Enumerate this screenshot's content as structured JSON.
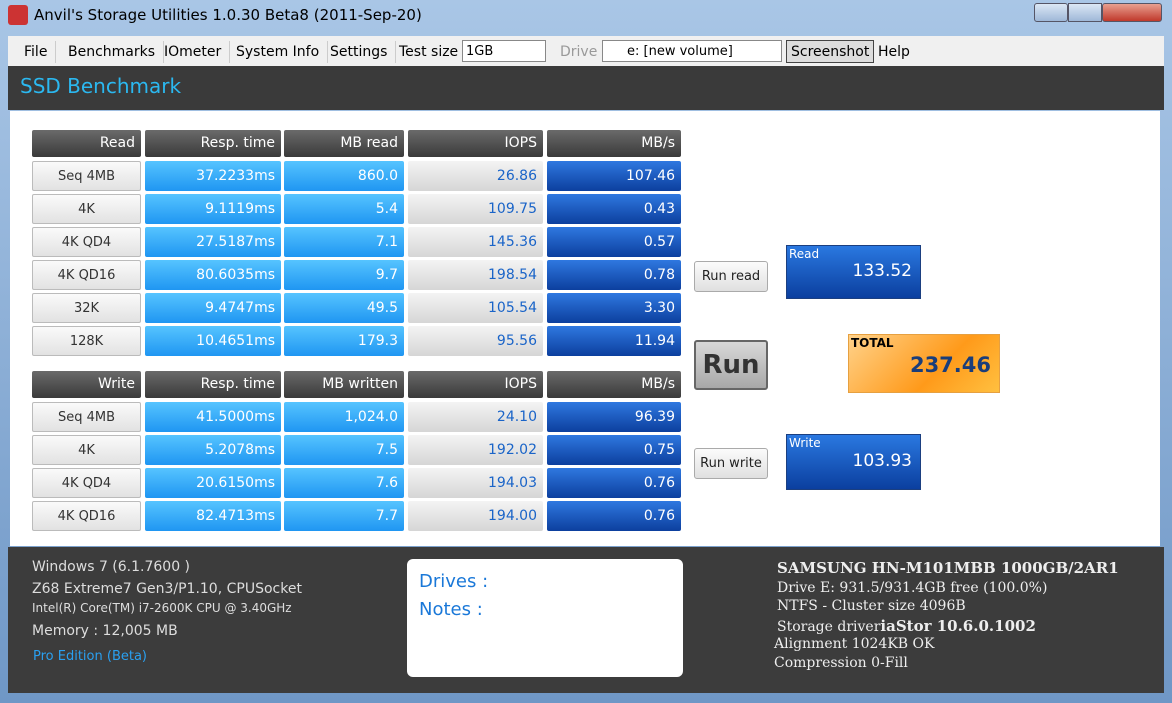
{
  "window": {
    "title": "Anvil's Storage Utilities 1.0.30 Beta8 (2011-Sep-20)"
  },
  "menu": {
    "items": [
      "File",
      "Benchmarks",
      "IOmeter",
      "System Info",
      "Settings"
    ],
    "test_size_label": "Test size",
    "test_size": "1GB",
    "drive_label": "Drive",
    "drive": "e: [new volume]",
    "screenshot": "Screenshot",
    "help": "Help"
  },
  "header": {
    "title": "SSD Benchmark"
  },
  "read_table": {
    "columns": [
      "Read",
      "Resp. time",
      "MB read",
      "IOPS",
      "MB/s"
    ],
    "rows": [
      [
        "Seq 4MB",
        "37.2233ms",
        "860.0",
        "26.86",
        "107.46"
      ],
      [
        "4K",
        "9.1119ms",
        "5.4",
        "109.75",
        "0.43"
      ],
      [
        "4K QD4",
        "27.5187ms",
        "7.1",
        "145.36",
        "0.57"
      ],
      [
        "4K QD16",
        "80.6035ms",
        "9.7",
        "198.54",
        "0.78"
      ],
      [
        "32K",
        "9.4747ms",
        "49.5",
        "105.54",
        "3.30"
      ],
      [
        "128K",
        "10.4651ms",
        "179.3",
        "95.56",
        "11.94"
      ]
    ]
  },
  "write_table": {
    "columns": [
      "Write",
      "Resp. time",
      "MB written",
      "IOPS",
      "MB/s"
    ],
    "rows": [
      [
        "Seq 4MB",
        "41.5000ms",
        "1,024.0",
        "24.10",
        "96.39"
      ],
      [
        "4K",
        "5.2078ms",
        "7.5",
        "192.02",
        "0.75"
      ],
      [
        "4K QD4",
        "20.6150ms",
        "7.6",
        "194.03",
        "0.76"
      ],
      [
        "4K QD16",
        "82.4713ms",
        "7.7",
        "194.00",
        "0.76"
      ]
    ]
  },
  "buttons": {
    "run_read": "Run read",
    "run": "Run",
    "run_write": "Run write"
  },
  "scores": {
    "read_label": "Read",
    "read": "133.52",
    "total_label": "TOTAL",
    "total": "237.46",
    "write_label": "Write",
    "write": "103.93"
  },
  "system": {
    "lines": [
      "Windows 7 (6.1.7600 )",
      "Z68 Extreme7 Gen3/P1.10, CPUSocket",
      "Intel(R) Core(TM) i7-2600K CPU @ 3.40GHz",
      "Memory : 12,005 MB"
    ],
    "edition": "Pro Edition (Beta)"
  },
  "notes": {
    "drives": "Drives :",
    "notes": "Notes :"
  },
  "drive_info": {
    "model": "SAMSUNG HN-M101MBB 1000GB/2AR1",
    "free": "Drive E: 931.5/931.4GB free (100.0%)",
    "fs": "NTFS - Cluster size 4096B",
    "driver_label": "Storage driver",
    "driver": "iaStor 10.6.0.1002",
    "alignment": "Alignment 1024KB OK",
    "compression": "Compression 0-Fill"
  }
}
